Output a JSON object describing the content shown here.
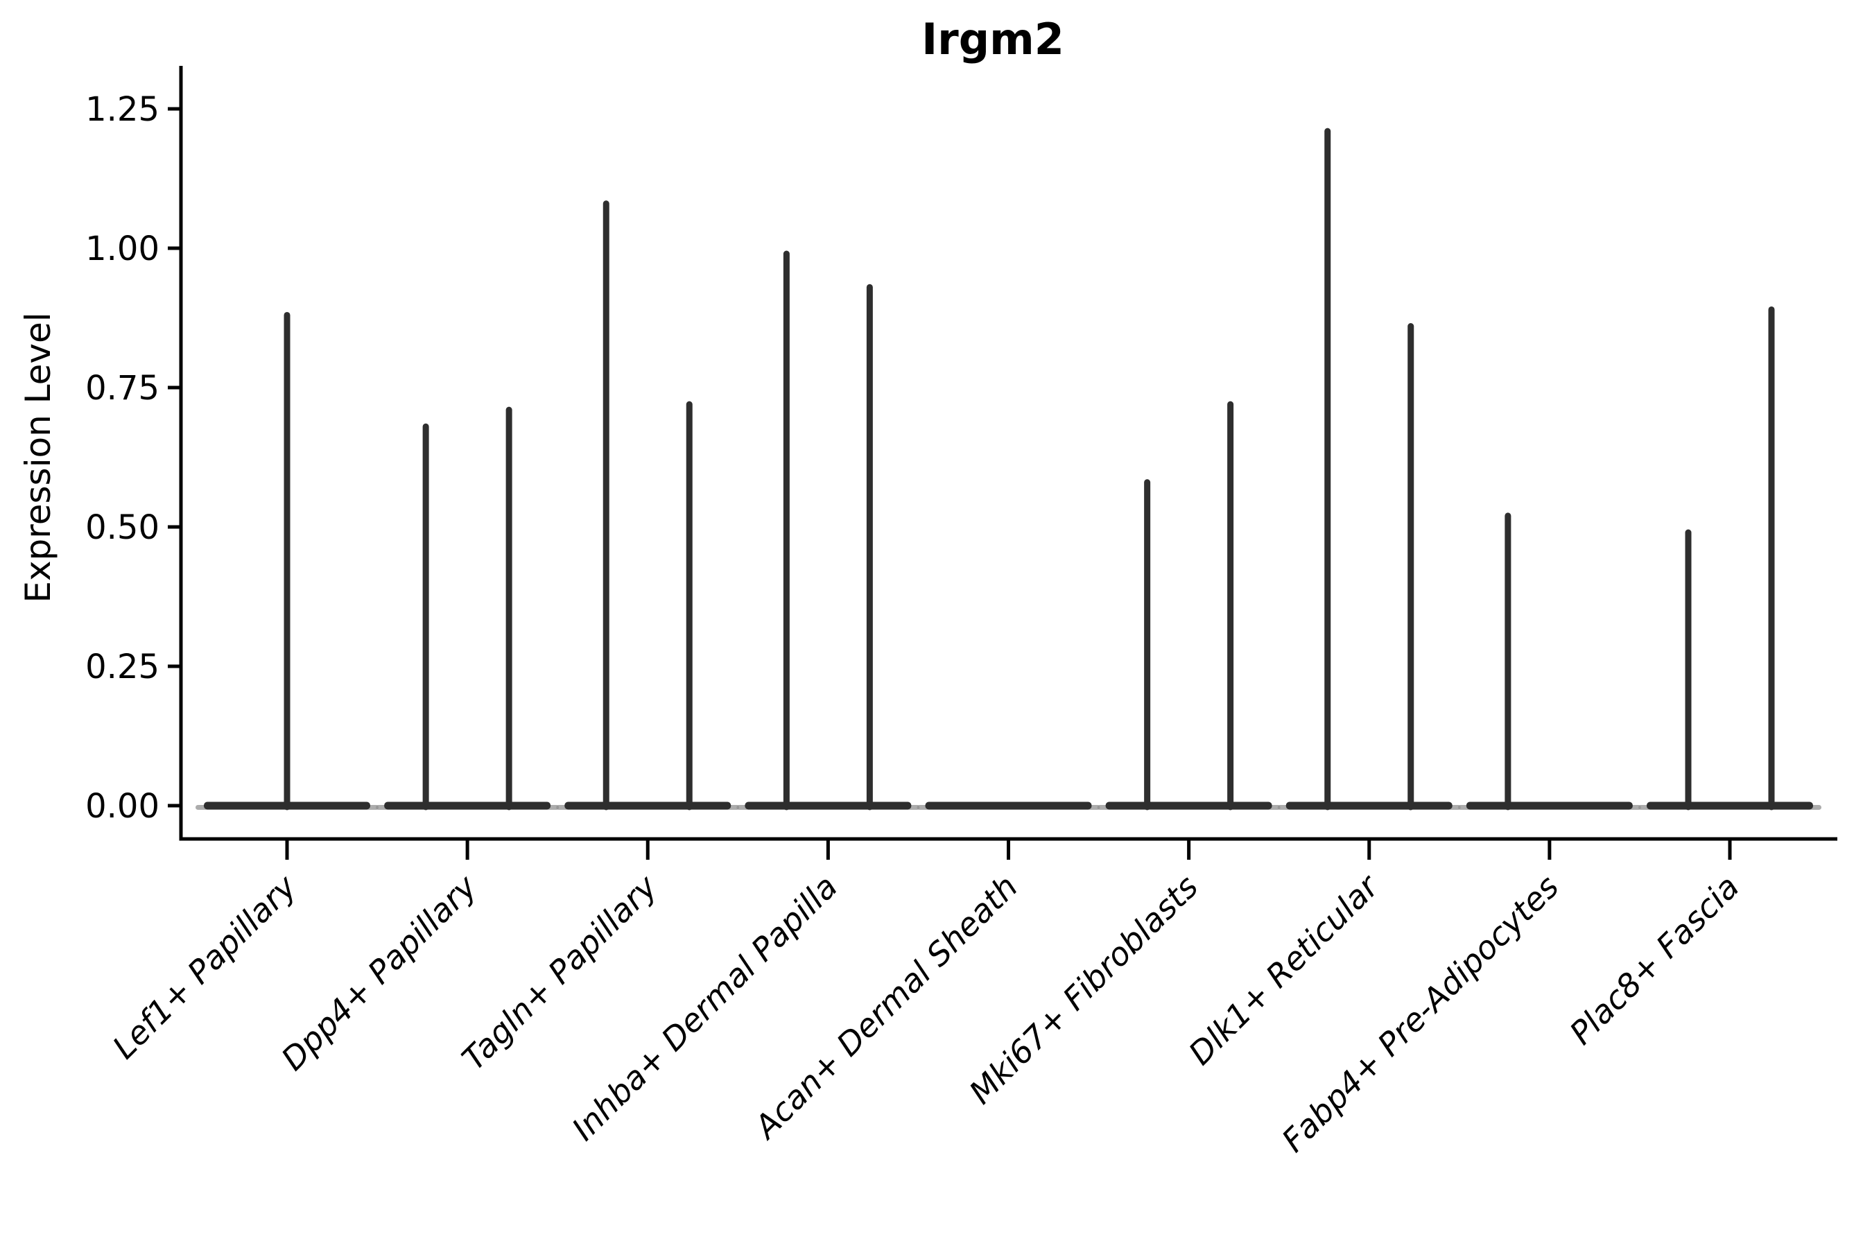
{
  "chart_data": {
    "type": "violin",
    "title": "Irgm2",
    "xlabel": "",
    "ylabel": "Expression Level",
    "ylim": [
      0,
      1.25
    ],
    "yticks": [
      {
        "value": 0.0,
        "label": "0.00"
      },
      {
        "value": 0.25,
        "label": "0.25"
      },
      {
        "value": 0.5,
        "label": "0.50"
      },
      {
        "value": 0.75,
        "label": "0.75"
      },
      {
        "value": 1.0,
        "label": "1.00"
      },
      {
        "value": 1.25,
        "label": "1.25"
      }
    ],
    "categories": [
      "Lef1+ Papillary",
      "Dpp4+ Papillary",
      "Tagln+ Papillary",
      "Inhba+ Dermal Papilla",
      "Acan+ Dermal Sheath",
      "Mki67+ Fibroblasts",
      "Dlk1+ Reticular",
      "Fabp4+ Pre-Adipocytes",
      "Plac8+ Fascia"
    ],
    "violins": [
      {
        "category": "Lef1+ Papillary",
        "baseline_value": 0,
        "peaks": [
          {
            "x_frac": 0.5,
            "max": 0.88
          }
        ]
      },
      {
        "category": "Dpp4+ Papillary",
        "baseline_value": 0,
        "peaks": [
          {
            "x_frac": 0.25,
            "max": 0.68
          },
          {
            "x_frac": 0.75,
            "max": 0.71
          }
        ]
      },
      {
        "category": "Tagln+ Papillary",
        "baseline_value": 0,
        "peaks": [
          {
            "x_frac": 0.25,
            "max": 1.08
          },
          {
            "x_frac": 0.75,
            "max": 0.72
          }
        ]
      },
      {
        "category": "Inhba+ Dermal Papilla",
        "baseline_value": 0,
        "peaks": [
          {
            "x_frac": 0.25,
            "max": 0.99
          },
          {
            "x_frac": 0.75,
            "max": 0.93
          }
        ]
      },
      {
        "category": "Acan+ Dermal Sheath",
        "baseline_value": 0,
        "peaks": []
      },
      {
        "category": "Mki67+ Fibroblasts",
        "baseline_value": 0,
        "peaks": [
          {
            "x_frac": 0.25,
            "max": 0.58
          },
          {
            "x_frac": 0.75,
            "max": 0.72
          }
        ]
      },
      {
        "category": "Dlk1+ Reticular",
        "baseline_value": 0,
        "peaks": [
          {
            "x_frac": 0.25,
            "max": 1.21
          },
          {
            "x_frac": 0.75,
            "max": 0.86
          }
        ]
      },
      {
        "category": "Fabp4+ Pre-Adipocytes",
        "baseline_value": 0,
        "peaks": [
          {
            "x_frac": 0.25,
            "max": 0.52
          }
        ]
      },
      {
        "category": "Plac8+ Fascia",
        "baseline_value": 0,
        "peaks": [
          {
            "x_frac": 0.25,
            "max": 0.49
          },
          {
            "x_frac": 0.75,
            "max": 0.89
          }
        ]
      }
    ],
    "style": {
      "violin_color": "#2e2e2e",
      "violin_halo_color": "#909090",
      "axis_color": "#000000",
      "background_color": "#ffffff",
      "legend": "none",
      "grid": "off"
    }
  }
}
